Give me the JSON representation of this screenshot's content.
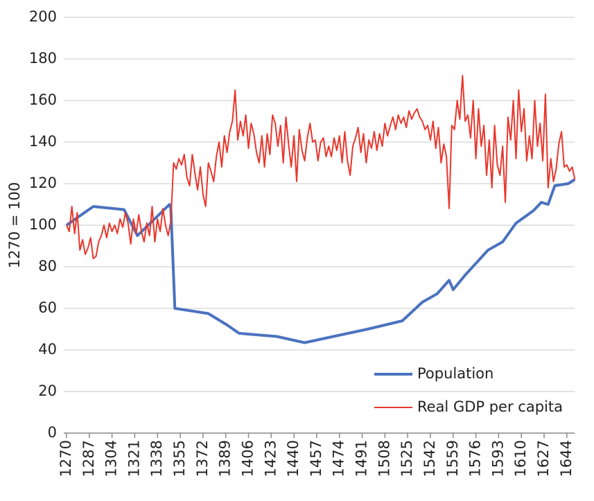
{
  "chart_data": {
    "type": "line",
    "ylabel": "1270 = 100",
    "xlim": [
      1270,
      1650
    ],
    "ylim": [
      0,
      200
    ],
    "xticks": [
      1270,
      1287,
      1304,
      1321,
      1338,
      1355,
      1372,
      1389,
      1406,
      1423,
      1440,
      1457,
      1474,
      1491,
      1508,
      1525,
      1542,
      1559,
      1576,
      1593,
      1610,
      1627,
      1644
    ],
    "yticks": [
      0,
      20,
      40,
      60,
      80,
      100,
      120,
      140,
      160,
      180,
      200
    ],
    "grid": true,
    "legend": "lower right",
    "series": [
      {
        "name": "Population",
        "color": "#4a72c0",
        "width": 4,
        "x": [
          1270,
          1290,
          1313,
          1323,
          1347,
          1348,
          1351,
          1376,
          1390,
          1399,
          1427,
          1448,
          1495,
          1521,
          1536,
          1547,
          1556,
          1559,
          1568,
          1585,
          1596,
          1606,
          1619,
          1625,
          1630,
          1635,
          1645,
          1650
        ],
        "values": [
          100,
          109,
          107.5,
          95,
          110,
          108,
          60,
          57.5,
          52,
          48,
          46.5,
          43.5,
          50,
          54,
          63,
          67,
          73.5,
          69,
          76,
          88,
          92,
          101,
          107,
          111,
          110,
          119,
          120,
          122
        ]
      },
      {
        "name": "Real GDP per capita",
        "color": "#e8372c",
        "width": 2,
        "x": [
          1270,
          1272,
          1274,
          1276,
          1278,
          1280,
          1282,
          1284,
          1286,
          1288,
          1290,
          1292,
          1294,
          1296,
          1298,
          1300,
          1302,
          1304,
          1306,
          1308,
          1310,
          1312,
          1314,
          1316,
          1318,
          1320,
          1322,
          1324,
          1326,
          1328,
          1330,
          1332,
          1334,
          1336,
          1338,
          1340,
          1342,
          1344,
          1346,
          1348,
          1350,
          1352,
          1354,
          1356,
          1358,
          1360,
          1362,
          1364,
          1366,
          1368,
          1370,
          1372,
          1374,
          1376,
          1378,
          1380,
          1382,
          1384,
          1386,
          1388,
          1390,
          1392,
          1394,
          1396,
          1398,
          1400,
          1402,
          1404,
          1406,
          1408,
          1410,
          1412,
          1414,
          1416,
          1418,
          1420,
          1422,
          1424,
          1426,
          1428,
          1430,
          1432,
          1434,
          1436,
          1438,
          1440,
          1442,
          1444,
          1446,
          1448,
          1450,
          1452,
          1454,
          1456,
          1458,
          1460,
          1462,
          1464,
          1466,
          1468,
          1470,
          1472,
          1474,
          1476,
          1478,
          1480,
          1482,
          1484,
          1486,
          1488,
          1490,
          1492,
          1494,
          1496,
          1498,
          1500,
          1502,
          1504,
          1506,
          1508,
          1510,
          1512,
          1514,
          1516,
          1518,
          1520,
          1522,
          1524,
          1526,
          1528,
          1530,
          1532,
          1534,
          1536,
          1538,
          1540,
          1542,
          1544,
          1546,
          1548,
          1550,
          1552,
          1554,
          1556,
          1558,
          1560,
          1562,
          1564,
          1566,
          1568,
          1570,
          1572,
          1574,
          1576,
          1578,
          1580,
          1582,
          1584,
          1586,
          1588,
          1590,
          1592,
          1594,
          1596,
          1598,
          1600,
          1602,
          1604,
          1606,
          1608,
          1610,
          1612,
          1614,
          1616,
          1618,
          1620,
          1622,
          1624,
          1626,
          1628,
          1630,
          1632,
          1634,
          1636,
          1638,
          1640,
          1642,
          1644,
          1646,
          1648,
          1650
        ],
        "values": [
          100,
          97,
          109,
          96,
          106,
          88,
          93,
          86,
          89,
          94,
          84,
          85,
          92,
          95,
          100,
          94,
          101,
          97,
          100,
          96,
          103,
          99,
          106,
          101,
          91,
          103,
          96,
          105,
          97,
          92,
          101,
          95,
          109,
          92,
          103,
          97,
          108,
          100,
          95,
          102,
          130,
          127,
          132,
          129,
          134,
          123,
          119,
          134,
          125,
          117,
          128,
          115,
          109,
          130,
          126,
          121,
          133,
          140,
          128,
          143,
          135,
          145,
          150,
          165,
          141,
          150,
          143,
          153,
          137,
          149,
          144,
          135,
          130,
          143,
          128,
          144,
          134,
          153,
          149,
          138,
          148,
          130,
          152,
          139,
          128,
          143,
          121,
          146,
          136,
          131,
          142,
          149,
          140,
          141,
          131,
          140,
          142,
          133,
          138,
          133,
          142,
          136,
          143,
          130,
          145,
          131,
          124,
          138,
          142,
          147,
          135,
          144,
          130,
          141,
          137,
          145,
          136,
          144,
          138,
          149,
          143,
          148,
          152,
          146,
          153,
          149,
          152,
          147,
          155,
          151,
          154,
          156,
          152,
          150,
          146,
          148,
          141,
          150,
          137,
          147,
          130,
          139,
          133,
          108,
          148,
          146,
          160,
          151,
          172,
          150,
          153,
          142,
          160,
          132,
          156,
          138,
          148,
          124,
          141,
          118,
          148,
          129,
          124,
          138,
          111,
          152,
          141,
          160,
          132,
          165,
          145,
          156,
          131,
          143,
          132,
          160,
          138,
          149,
          131,
          163,
          118,
          132,
          121,
          127,
          139,
          145,
          128,
          129,
          126,
          128,
          122
        ]
      }
    ]
  }
}
